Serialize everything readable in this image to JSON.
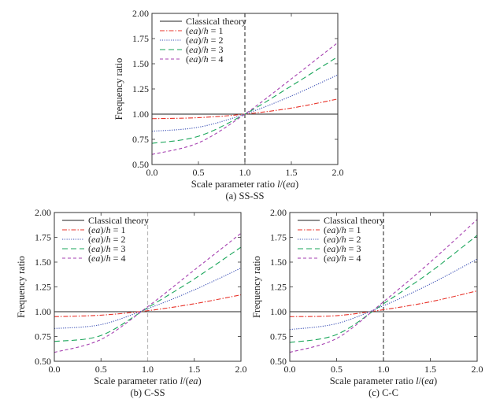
{
  "chart_data": [
    {
      "type": "line",
      "caption": "(a) SS-SS",
      "xlabel": "Scale parameter ratio l/(ea)",
      "ylabel": "Frequency ratio",
      "xlim": [
        0,
        2.0
      ],
      "ylim": [
        0.5,
        2.0
      ],
      "xticks": [
        "0.0",
        "0.5",
        "1.0",
        "1.5",
        "2.0"
      ],
      "yticks": [
        "0.50",
        "0.75",
        "1.00",
        "1.25",
        "1.50",
        "1.75",
        "2.00"
      ],
      "grid": false,
      "legend": "top-left",
      "vline": {
        "x": 1.0,
        "color": "#444444"
      },
      "x": [
        0,
        0.5,
        1.0,
        1.5,
        2.0
      ],
      "series": [
        {
          "name": "Classical theory",
          "color": "#222222",
          "style": "solid",
          "values": [
            1.0,
            1.0,
            1.0,
            1.0,
            1.0
          ]
        },
        {
          "name": "(ea)/h = 1",
          "color": "#e8332a",
          "style": "dashdot",
          "values": [
            0.955,
            0.965,
            1.0,
            1.06,
            1.15
          ]
        },
        {
          "name": "(ea)/h = 2",
          "color": "#3a4fb5",
          "style": "dotted",
          "values": [
            0.83,
            0.87,
            1.0,
            1.18,
            1.39
          ]
        },
        {
          "name": "(ea)/h = 3",
          "color": "#1aa65a",
          "style": "longdash",
          "values": [
            0.71,
            0.78,
            1.0,
            1.28,
            1.57
          ]
        },
        {
          "name": "(ea)/h = 4",
          "color": "#a640b0",
          "style": "dashed",
          "values": [
            0.6,
            0.715,
            1.0,
            1.35,
            1.71
          ]
        }
      ]
    },
    {
      "type": "line",
      "caption": "(b) C-SS",
      "xlabel": "Scale parameter ratio l/(ea)",
      "ylabel": "Frequency ratio",
      "xlim": [
        0,
        2.0
      ],
      "ylim": [
        0.5,
        2.0
      ],
      "xticks": [
        "0.0",
        "0.5",
        "1.0",
        "1.5",
        "2.0"
      ],
      "yticks": [
        "0.50",
        "0.75",
        "1.00",
        "1.25",
        "1.50",
        "1.75",
        "2.00"
      ],
      "grid": false,
      "legend": "top-left",
      "vline": {
        "x": 1.0,
        "color": "#bbbbbb"
      },
      "x": [
        0,
        0.5,
        1.0,
        1.5,
        2.0
      ],
      "series": [
        {
          "name": "Classical theory",
          "color": "#222222",
          "style": "solid",
          "values": [
            1.0,
            1.0,
            1.0,
            1.0,
            1.0
          ]
        },
        {
          "name": "(ea)/h = 1",
          "color": "#e8332a",
          "style": "dashdot",
          "values": [
            0.95,
            0.965,
            1.01,
            1.08,
            1.17
          ]
        },
        {
          "name": "(ea)/h = 2",
          "color": "#3a4fb5",
          "style": "dotted",
          "values": [
            0.83,
            0.87,
            1.03,
            1.22,
            1.44
          ]
        },
        {
          "name": "(ea)/h = 3",
          "color": "#1aa65a",
          "style": "longdash",
          "values": [
            0.7,
            0.76,
            1.04,
            1.33,
            1.65
          ]
        },
        {
          "name": "(ea)/h = 4",
          "color": "#a640b0",
          "style": "dashed",
          "values": [
            0.59,
            0.72,
            1.05,
            1.42,
            1.79
          ]
        }
      ]
    },
    {
      "type": "line",
      "caption": "(c) C-C",
      "xlabel": "Scale parameter ratio l/(ea)",
      "ylabel": "Frequency ratio",
      "xlim": [
        0,
        2.0
      ],
      "ylim": [
        0.5,
        2.0
      ],
      "xticks": [
        "0.0",
        "0.5",
        "1.0",
        "1.5",
        "2.0"
      ],
      "yticks": [
        "0.50",
        "0.75",
        "1.00",
        "1.25",
        "1.50",
        "1.75",
        "2.00"
      ],
      "grid": false,
      "legend": "top-left",
      "vline": {
        "x": 1.0,
        "color": "#444444"
      },
      "x": [
        0,
        0.5,
        1.0,
        1.5,
        2.0
      ],
      "series": [
        {
          "name": "Classical theory",
          "color": "#222222",
          "style": "solid",
          "values": [
            1.0,
            1.0,
            1.0,
            1.0,
            1.0
          ]
        },
        {
          "name": "(ea)/h = 1",
          "color": "#e8332a",
          "style": "dashdot",
          "values": [
            0.95,
            0.96,
            1.02,
            1.1,
            1.21
          ]
        },
        {
          "name": "(ea)/h = 2",
          "color": "#3a4fb5",
          "style": "dotted",
          "values": [
            0.82,
            0.88,
            1.06,
            1.28,
            1.53
          ]
        },
        {
          "name": "(ea)/h = 3",
          "color": "#1aa65a",
          "style": "longdash",
          "values": [
            0.69,
            0.77,
            1.08,
            1.4,
            1.77
          ]
        },
        {
          "name": "(ea)/h = 4",
          "color": "#a640b0",
          "style": "dashed",
          "values": [
            0.59,
            0.73,
            1.1,
            1.5,
            1.93
          ]
        }
      ]
    }
  ]
}
